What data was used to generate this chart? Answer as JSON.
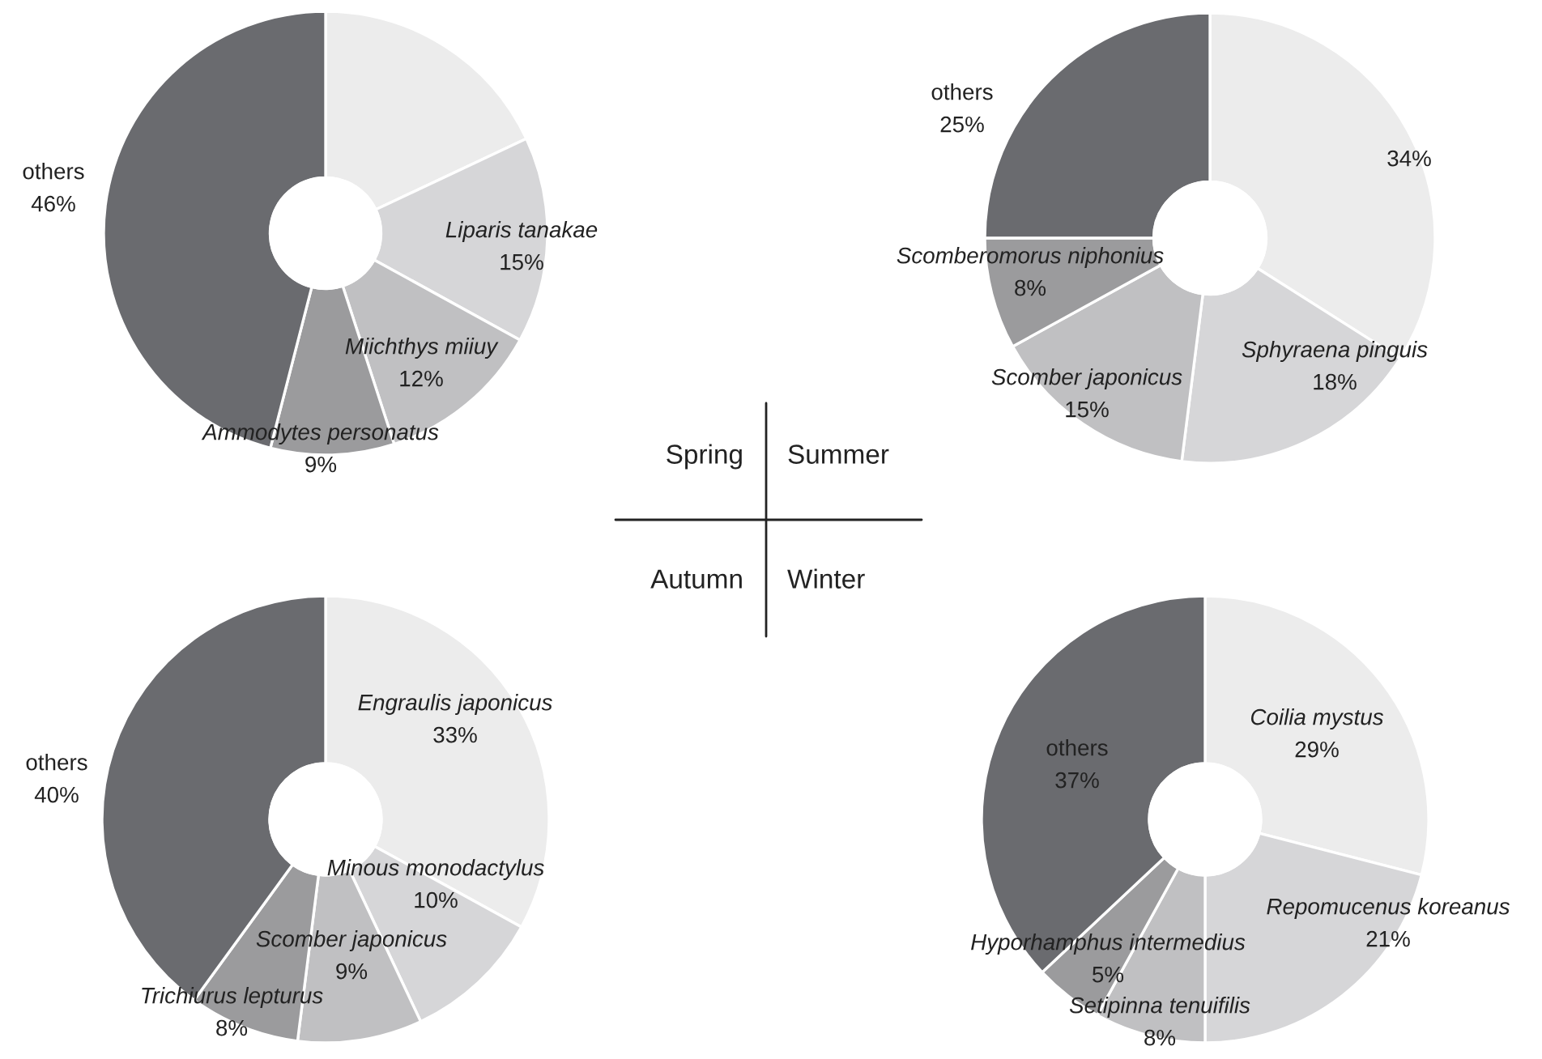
{
  "chart_data": [
    {
      "type": "donut",
      "title": "Spring",
      "categories": [
        null,
        "Liparis tanakae",
        "Miichthys miiuy",
        "Ammodytes personatus",
        "others"
      ],
      "values": [
        18,
        15,
        12,
        9,
        46
      ],
      "value_labels": [
        null,
        "15%",
        "12%",
        "9%",
        "46%"
      ],
      "colors": [
        "#ececec",
        "#d6d6d8",
        "#c0c0c2",
        "#9b9b9d",
        "#6a6b6f"
      ]
    },
    {
      "type": "donut",
      "title": "Summer",
      "categories": [
        null,
        "Sphyraena pinguis",
        "Scomber japonicus",
        "Scomberomorus niphonius",
        "others"
      ],
      "values": [
        34,
        18,
        15,
        8,
        25
      ],
      "value_labels": [
        "34%",
        "18%",
        "15%",
        "8%",
        "25%"
      ],
      "colors": [
        "#ececec",
        "#d6d6d8",
        "#c0c0c2",
        "#9b9b9d",
        "#6a6b6f"
      ]
    },
    {
      "type": "donut",
      "title": "Autumn",
      "categories": [
        "Engraulis japonicus",
        "Minous monodactylus",
        "Scomber japonicus",
        "Trichiurus lepturus",
        "others"
      ],
      "values": [
        33,
        10,
        9,
        8,
        40
      ],
      "value_labels": [
        "33%",
        "10%",
        "9%",
        "8%",
        "40%"
      ],
      "colors": [
        "#ececec",
        "#d6d6d8",
        "#c0c0c2",
        "#9b9b9d",
        "#6a6b6f"
      ]
    },
    {
      "type": "donut",
      "title": "Winter",
      "categories": [
        "Coilia mystus",
        "Repomucenus koreanus",
        "Setipinna tenuifilis",
        "Hyporhamphus intermedius",
        "others"
      ],
      "values": [
        29,
        21,
        8,
        5,
        37
      ],
      "value_labels": [
        "29%",
        "21%",
        "8%",
        "5%",
        "37%"
      ],
      "colors": [
        "#ececec",
        "#d6d6d8",
        "#c0c0c2",
        "#9b9b9d",
        "#6a6b6f"
      ]
    }
  ]
}
